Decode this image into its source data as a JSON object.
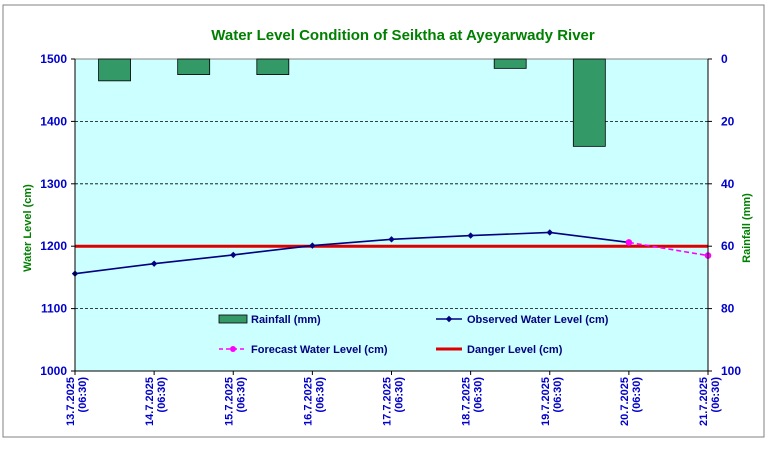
{
  "chart_data": {
    "type": "bar+line",
    "title": "Water Level Condition of Seiktha at Ayeyarwady River",
    "y_left": {
      "label": "Water Level (cm)",
      "range": [
        1000,
        1500
      ],
      "ticks": [
        "1000",
        "1100",
        "1200",
        "1300",
        "1400",
        "1500"
      ]
    },
    "y_right": {
      "label": "Rainfall (mm)",
      "range": [
        0,
        100
      ],
      "reversed": true,
      "ticks": [
        "0",
        "20",
        "40",
        "60",
        "80",
        "100"
      ]
    },
    "categories": [
      {
        "date": "13.7.2025",
        "time": "(06:30)"
      },
      {
        "date": "14.7.2025",
        "time": "(06:30)"
      },
      {
        "date": "15.7.2025",
        "time": "(06:30)"
      },
      {
        "date": "16.7.2025",
        "time": "(06:30)"
      },
      {
        "date": "17.7.2025",
        "time": "(06:30)"
      },
      {
        "date": "18.7.2025",
        "time": "(06:30)"
      },
      {
        "date": "19.7.2025",
        "time": "(06:30)"
      },
      {
        "date": "20.7.2025",
        "time": "(06:30)"
      },
      {
        "date": "21.7.2025",
        "time": "(06:30)"
      }
    ],
    "rainfall": {
      "name": "Rainfall (mm)",
      "values": [
        7,
        5,
        5,
        null,
        null,
        3,
        28,
        null,
        null
      ]
    },
    "observed": {
      "name": "Observed Water Level (cm)",
      "values": [
        1156,
        1172,
        1186,
        1201,
        1211,
        1217,
        1222,
        1206,
        null
      ]
    },
    "forecast": {
      "name": "Forecast Water Level (cm)",
      "points": [
        [
          7,
          1206
        ],
        [
          8,
          1185
        ]
      ]
    },
    "danger": {
      "name": "Danger Level (cm)",
      "value": 1200
    },
    "grid": true,
    "legend_position": "inside-bottom",
    "colors": {
      "plot_bg": "#ccffff",
      "title": "#008000",
      "axis_text": "#0000cc",
      "axis_label": "#008000",
      "rainfall": "#339966",
      "observed": "#000080",
      "forecast": "#ff00ff",
      "danger": "#dd0000"
    }
  }
}
